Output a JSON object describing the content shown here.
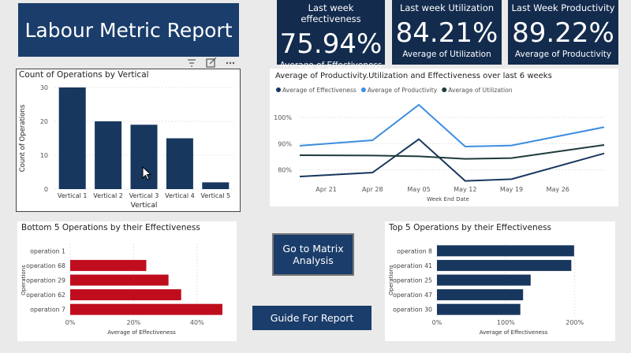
{
  "report_title": "Labour Metric Report",
  "kpis": [
    {
      "title": "Last week effectiveness",
      "value": "75.94%",
      "subtitle": "Average of Effectiveness"
    },
    {
      "title": "Last week Utilization",
      "value": "84.21%",
      "subtitle": "Average of Utilization"
    },
    {
      "title": "Last Week Productivity",
      "value": "89.22%",
      "subtitle": "Average of Productivity"
    }
  ],
  "visual_header": {
    "filter_icon": "filter-icon",
    "focus_icon": "focus-mode-icon",
    "more_icon": "more-options-icon"
  },
  "buttons": {
    "matrix": "Go to Matrix Analysis",
    "guide": "Guide For Report"
  },
  "colors": {
    "navy": "#17375e",
    "dark_navy": "#132b4d",
    "light_blue": "#3d8de0",
    "dark_teal": "#1d3b3a",
    "red": "#c00d1e"
  },
  "chart_data": [
    {
      "type": "bar",
      "title": "Count of Operations by Vertical",
      "xlabel": "Vertical",
      "ylabel": "Count of Operations",
      "categories": [
        "Vertical 1",
        "Vertical 2",
        "Vertical 3",
        "Vertical 4",
        "Vertical 5"
      ],
      "values": [
        30,
        20,
        19,
        15,
        2
      ],
      "ylim": [
        0,
        30
      ],
      "yticks": [
        "0",
        "10",
        "20",
        "30"
      ],
      "grid": true
    },
    {
      "type": "line",
      "title": "Average of Productivity.Utilization and Effectiveness over last 6 weeks",
      "xlabel": "Week End Date",
      "ylabel": "",
      "x": [
        "2024-04-17",
        "2024-04-28",
        "2024-05-05",
        "2024-05-12",
        "2024-05-19",
        "2024-06-02"
      ],
      "xticks": [
        "Apr 21",
        "Apr 28",
        "May 05",
        "May 12",
        "May 19",
        "May 26"
      ],
      "yticks": [
        "80%",
        "90%",
        "100%"
      ],
      "ylim": [
        76,
        106
      ],
      "legend": "top-left",
      "grid": true,
      "series": [
        {
          "name": "Average of Effectiveness",
          "color": "#17375e",
          "values": [
            77.5,
            79,
            91.7,
            75.8,
            76.5,
            86.3
          ]
        },
        {
          "name": "Average of Productivity",
          "color": "#3d8de0",
          "values": [
            89.2,
            91.3,
            104.8,
            88.9,
            89.3,
            96.3
          ]
        },
        {
          "name": "Average of Utilization",
          "color": "#1d3b3a",
          "values": [
            85.6,
            85.5,
            85.2,
            84.2,
            84.5,
            89.5
          ]
        }
      ]
    },
    {
      "type": "bar",
      "orientation": "horizontal",
      "title": "Bottom 5 Operations by their Effectiveness",
      "xlabel": "Average of Effectiveness",
      "ylabel": "Operations",
      "categories": [
        "operation 1",
        "operation 68",
        "operation 29",
        "operation 62",
        "operation 7"
      ],
      "values": [
        0,
        24,
        31,
        35,
        48
      ],
      "xticks": [
        "0%",
        "20%",
        "40%"
      ],
      "xlim": [
        0,
        50
      ],
      "grid": true
    },
    {
      "type": "bar",
      "orientation": "horizontal",
      "title": "Top 5 Operations by their Effectiveness",
      "xlabel": "Average of Effectiveness",
      "ylabel": "Operations",
      "categories": [
        "operation 8",
        "operation 41",
        "operation 25",
        "operation 47",
        "operation 30"
      ],
      "values": [
        199,
        195,
        136,
        125,
        121
      ],
      "xticks": [
        "0%",
        "100%",
        "200%"
      ],
      "xlim": [
        0,
        245
      ],
      "grid": true
    }
  ]
}
